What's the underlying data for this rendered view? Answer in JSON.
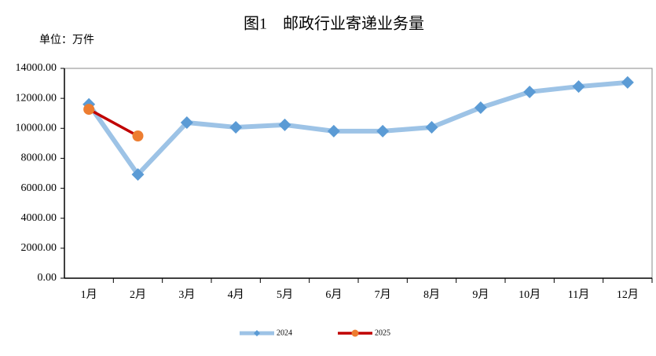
{
  "chart_data": {
    "type": "line",
    "title": "图1　邮政行业寄递业务量",
    "subtitle": "单位：万件",
    "categories": [
      "1月",
      "2月",
      "3月",
      "4月",
      "5月",
      "6月",
      "7月",
      "8月",
      "9月",
      "10月",
      "11月",
      "12月"
    ],
    "series": [
      {
        "name": "2024",
        "color": "#9dc3e6",
        "marker_color": "#5b9bd5",
        "marker": "diamond",
        "values": [
          11600,
          6920,
          10380,
          10070,
          10230,
          9810,
          9810,
          10070,
          11380,
          12430,
          12790,
          13060
        ]
      },
      {
        "name": "2025",
        "color": "#c00000",
        "marker_color": "#ed7d31",
        "marker": "circle",
        "values": [
          11270,
          9490,
          null,
          null,
          null,
          null,
          null,
          null,
          null,
          null,
          null,
          null
        ]
      }
    ],
    "ylim": [
      0,
      14000
    ],
    "yticks": [
      {
        "value": 0,
        "label": "0.00"
      },
      {
        "value": 2000,
        "label": "2000.00"
      },
      {
        "value": 4000,
        "label": "4000.00"
      },
      {
        "value": 6000,
        "label": "6000.00"
      },
      {
        "value": 8000,
        "label": "8000.00"
      },
      {
        "value": 10000,
        "label": "10000.00"
      },
      {
        "value": 12000,
        "label": "12000.00"
      },
      {
        "value": 14000,
        "label": "14000.00"
      }
    ],
    "legend": "bottom"
  }
}
